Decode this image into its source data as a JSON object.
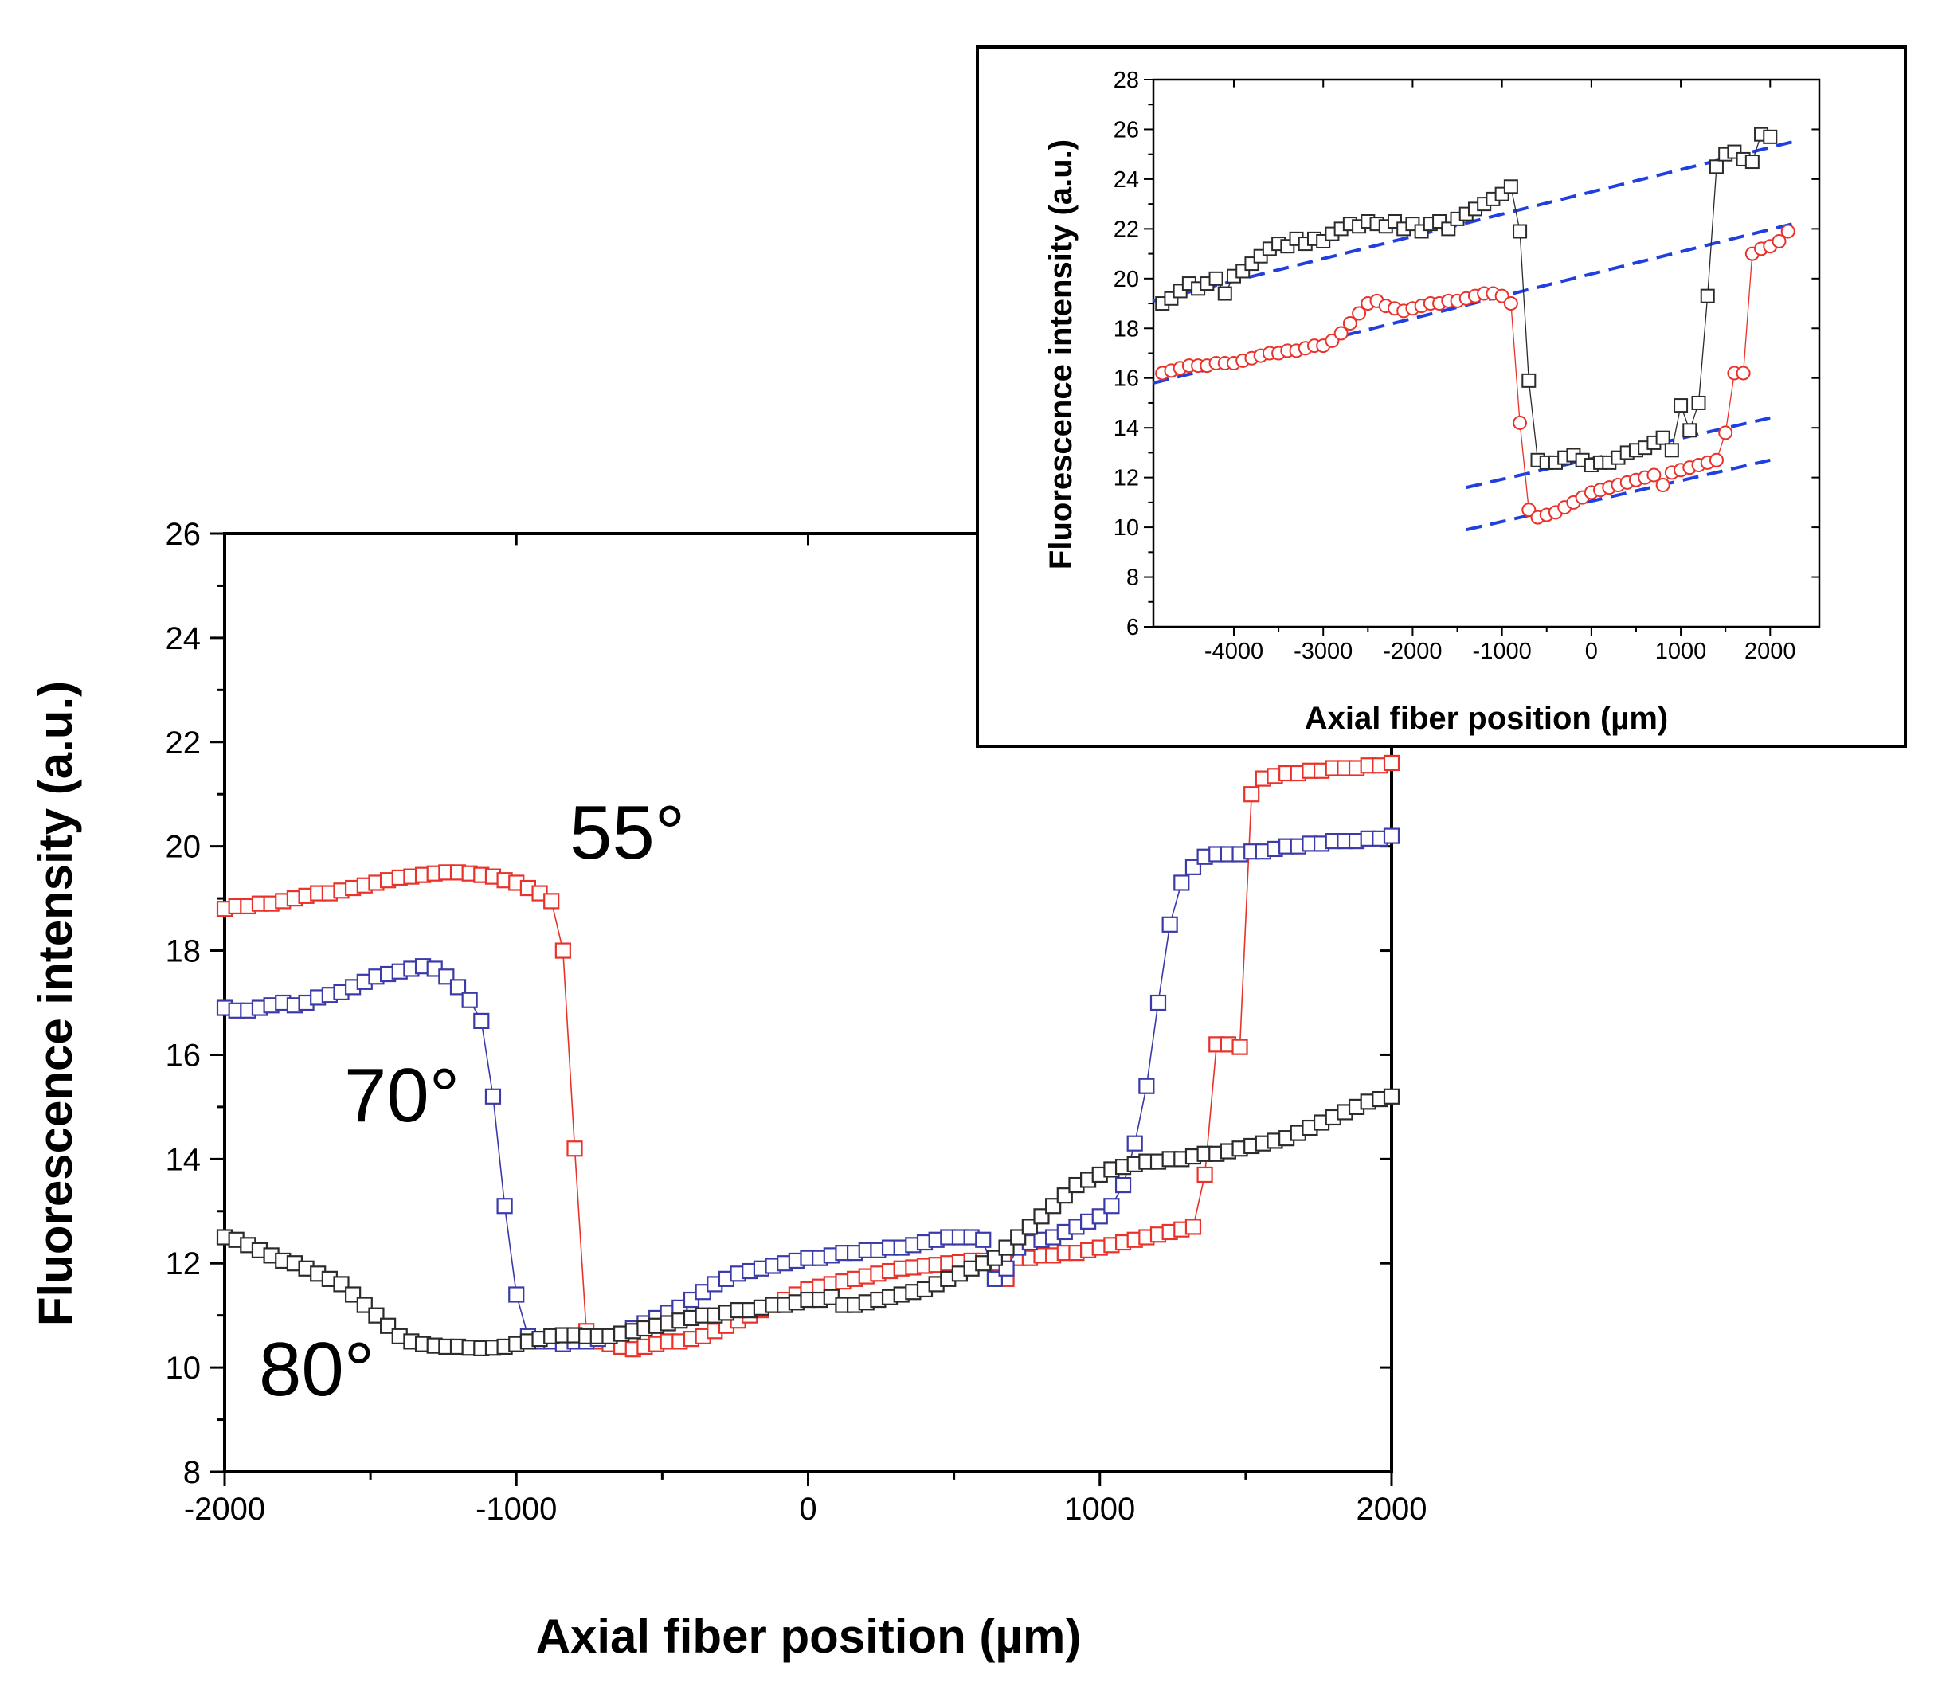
{
  "chart_data": [
    {
      "type": "line",
      "title": "",
      "xlabel": "Axial fiber position (µm)",
      "ylabel": "Fluorescence intensity (a.u.)",
      "xlim": [
        -2000,
        2000
      ],
      "ylim": [
        8,
        26
      ],
      "x_ticks": [
        -2000,
        -1000,
        0,
        1000,
        2000
      ],
      "y_ticks": [
        8,
        10,
        12,
        14,
        16,
        18,
        20,
        22,
        24,
        26
      ],
      "x_tick_labels": [
        "-2000",
        "-1000",
        "0",
        "1000",
        "2000"
      ],
      "y_tick_labels": [
        "8",
        "10",
        "12",
        "14",
        "16",
        "18",
        "20",
        "22",
        "24",
        "26"
      ],
      "marker": "square",
      "annotations": [
        {
          "text": "55°",
          "x": -820,
          "y": 20.1
        },
        {
          "text": "70°",
          "x": -1400,
          "y": 15.7
        },
        {
          "text": "80°",
          "x": -1800,
          "y": 9.9
        }
      ],
      "series": [
        {
          "name": "55°",
          "color": "#e8322a",
          "x": [
            -2000,
            -1960,
            -1920,
            -1880,
            -1840,
            -1800,
            -1760,
            -1720,
            -1680,
            -1640,
            -1600,
            -1560,
            -1520,
            -1480,
            -1440,
            -1400,
            -1360,
            -1320,
            -1280,
            -1240,
            -1200,
            -1160,
            -1120,
            -1080,
            -1040,
            -1000,
            -960,
            -920,
            -880,
            -840,
            -800,
            -760,
            -720,
            -680,
            -640,
            -600,
            -560,
            -520,
            -480,
            -440,
            -400,
            -360,
            -320,
            -280,
            -240,
            -200,
            -160,
            -120,
            -80,
            -40,
            0,
            40,
            80,
            120,
            160,
            200,
            240,
            280,
            320,
            360,
            400,
            440,
            480,
            520,
            560,
            600,
            640,
            680,
            720,
            760,
            800,
            840,
            880,
            920,
            960,
            1000,
            1040,
            1080,
            1120,
            1160,
            1200,
            1240,
            1280,
            1320,
            1360,
            1400,
            1440,
            1480,
            1520,
            1560,
            1600,
            1640,
            1680,
            1720,
            1760,
            1800,
            1840,
            1880,
            1920,
            1960,
            2000
          ],
          "y": [
            18.8,
            18.85,
            18.85,
            18.9,
            18.9,
            18.95,
            19.0,
            19.05,
            19.1,
            19.1,
            19.15,
            19.2,
            19.25,
            19.3,
            19.35,
            19.4,
            19.42,
            19.45,
            19.48,
            19.5,
            19.5,
            19.48,
            19.45,
            19.42,
            19.35,
            19.3,
            19.2,
            19.1,
            18.95,
            18.0,
            14.2,
            10.7,
            10.5,
            10.45,
            10.4,
            10.35,
            10.4,
            10.45,
            10.5,
            10.5,
            10.55,
            10.6,
            10.7,
            10.8,
            10.9,
            11.0,
            11.1,
            11.2,
            11.3,
            11.4,
            11.5,
            11.55,
            11.6,
            11.65,
            11.7,
            11.75,
            11.8,
            11.85,
            11.9,
            11.92,
            11.95,
            11.97,
            12.0,
            12.02,
            12.05,
            12.05,
            12.0,
            11.7,
            12.1,
            12.1,
            12.15,
            12.15,
            12.2,
            12.2,
            12.25,
            12.3,
            12.35,
            12.4,
            12.45,
            12.5,
            12.55,
            12.6,
            12.65,
            12.7,
            13.7,
            16.2,
            16.2,
            16.15,
            21.0,
            21.3,
            21.35,
            21.4,
            21.4,
            21.45,
            21.45,
            21.5,
            21.5,
            21.5,
            21.55,
            21.55,
            21.6
          ]
        },
        {
          "name": "70°",
          "color": "#3a3aa8",
          "x": [
            -2000,
            -1960,
            -1920,
            -1880,
            -1840,
            -1800,
            -1760,
            -1720,
            -1680,
            -1640,
            -1600,
            -1560,
            -1520,
            -1480,
            -1440,
            -1400,
            -1360,
            -1320,
            -1280,
            -1240,
            -1200,
            -1160,
            -1120,
            -1080,
            -1040,
            -1000,
            -960,
            -920,
            -880,
            -840,
            -800,
            -760,
            -720,
            -680,
            -640,
            -600,
            -560,
            -520,
            -480,
            -440,
            -400,
            -360,
            -320,
            -280,
            -240,
            -200,
            -160,
            -120,
            -80,
            -40,
            0,
            40,
            80,
            120,
            160,
            200,
            240,
            280,
            320,
            360,
            400,
            440,
            480,
            520,
            560,
            600,
            640,
            680,
            720,
            760,
            800,
            840,
            880,
            920,
            960,
            1000,
            1040,
            1080,
            1120,
            1160,
            1200,
            1240,
            1280,
            1320,
            1360,
            1400,
            1440,
            1480,
            1520,
            1560,
            1600,
            1640,
            1680,
            1720,
            1760,
            1800,
            1840,
            1880,
            1920,
            1960,
            2000
          ],
          "y": [
            16.9,
            16.85,
            16.85,
            16.9,
            16.95,
            17.0,
            16.95,
            17.0,
            17.1,
            17.15,
            17.2,
            17.3,
            17.4,
            17.5,
            17.55,
            17.6,
            17.65,
            17.7,
            17.65,
            17.5,
            17.3,
            17.05,
            16.65,
            15.2,
            13.1,
            11.4,
            10.6,
            10.5,
            10.5,
            10.45,
            10.5,
            10.5,
            10.55,
            10.6,
            10.65,
            10.75,
            10.85,
            10.95,
            11.05,
            11.15,
            11.3,
            11.45,
            11.6,
            11.7,
            11.8,
            11.85,
            11.9,
            11.95,
            12.0,
            12.05,
            12.1,
            12.1,
            12.15,
            12.2,
            12.2,
            12.25,
            12.25,
            12.3,
            12.3,
            12.35,
            12.4,
            12.45,
            12.5,
            12.5,
            12.5,
            12.45,
            11.7,
            11.9,
            12.3,
            12.4,
            12.45,
            12.5,
            12.6,
            12.7,
            12.8,
            12.9,
            13.1,
            13.5,
            14.3,
            15.4,
            17.0,
            18.5,
            19.3,
            19.6,
            19.8,
            19.85,
            19.85,
            19.85,
            19.9,
            19.9,
            19.95,
            20.0,
            20.0,
            20.05,
            20.05,
            20.1,
            20.1,
            20.1,
            20.15,
            20.15,
            20.2
          ]
        },
        {
          "name": "80°",
          "color": "#2b2b2b",
          "x": [
            -2000,
            -1960,
            -1920,
            -1880,
            -1840,
            -1800,
            -1760,
            -1720,
            -1680,
            -1640,
            -1600,
            -1560,
            -1520,
            -1480,
            -1440,
            -1400,
            -1360,
            -1320,
            -1280,
            -1240,
            -1200,
            -1160,
            -1120,
            -1080,
            -1040,
            -1000,
            -960,
            -920,
            -880,
            -840,
            -800,
            -760,
            -720,
            -680,
            -640,
            -600,
            -560,
            -520,
            -480,
            -440,
            -400,
            -360,
            -320,
            -280,
            -240,
            -200,
            -160,
            -120,
            -80,
            -40,
            0,
            40,
            80,
            120,
            160,
            200,
            240,
            280,
            320,
            360,
            400,
            440,
            480,
            520,
            560,
            600,
            640,
            680,
            720,
            760,
            800,
            840,
            880,
            920,
            960,
            1000,
            1040,
            1080,
            1120,
            1160,
            1200,
            1240,
            1280,
            1320,
            1360,
            1400,
            1440,
            1480,
            1520,
            1560,
            1600,
            1640,
            1680,
            1720,
            1760,
            1800,
            1840,
            1880,
            1920,
            1960,
            2000
          ],
          "y": [
            12.5,
            12.45,
            12.35,
            12.25,
            12.15,
            12.05,
            12.0,
            11.9,
            11.8,
            11.7,
            11.6,
            11.4,
            11.2,
            11.0,
            10.8,
            10.6,
            10.5,
            10.45,
            10.42,
            10.4,
            10.4,
            10.38,
            10.37,
            10.38,
            10.4,
            10.45,
            10.5,
            10.55,
            10.6,
            10.62,
            10.62,
            10.6,
            10.6,
            10.6,
            10.65,
            10.7,
            10.75,
            10.8,
            10.85,
            10.9,
            10.95,
            11.0,
            11.0,
            11.05,
            11.1,
            11.1,
            11.15,
            11.2,
            11.2,
            11.25,
            11.3,
            11.3,
            11.35,
            11.2,
            11.2,
            11.25,
            11.3,
            11.35,
            11.4,
            11.45,
            11.5,
            11.6,
            11.7,
            11.8,
            11.9,
            12.0,
            12.1,
            12.3,
            12.5,
            12.7,
            12.9,
            13.1,
            13.3,
            13.5,
            13.6,
            13.7,
            13.8,
            13.85,
            13.9,
            13.95,
            13.95,
            14.0,
            14.0,
            14.05,
            14.1,
            14.1,
            14.15,
            14.2,
            14.25,
            14.3,
            14.35,
            14.4,
            14.5,
            14.6,
            14.7,
            14.8,
            14.9,
            15.0,
            15.1,
            15.15,
            15.2
          ]
        }
      ]
    },
    {
      "type": "line",
      "title": "",
      "xlabel": "Axial fiber position (µm)",
      "ylabel": "Fluorescence intensity (a.u.)",
      "xlim": [
        -4900,
        2550
      ],
      "ylim": [
        6,
        28
      ],
      "x_ticks": [
        -4000,
        -3000,
        -2000,
        -1000,
        0,
        1000,
        2000
      ],
      "y_ticks": [
        6,
        8,
        10,
        12,
        14,
        16,
        18,
        20,
        22,
        24,
        26,
        28
      ],
      "x_tick_labels": [
        "-4000",
        "-3000",
        "-2000",
        "-1000",
        "0",
        "1000",
        "2000"
      ],
      "y_tick_labels": [
        "6",
        "8",
        "10",
        "12",
        "14",
        "16",
        "18",
        "20",
        "22",
        "24",
        "26",
        "28"
      ],
      "series": [
        {
          "name": "black squares",
          "color": "#2b2b2b",
          "marker": "square",
          "x": [
            -4800,
            -4700,
            -4600,
            -4500,
            -4400,
            -4300,
            -4200,
            -4100,
            -4000,
            -3900,
            -3800,
            -3700,
            -3600,
            -3500,
            -3400,
            -3300,
            -3200,
            -3100,
            -3000,
            -2900,
            -2800,
            -2700,
            -2600,
            -2500,
            -2400,
            -2300,
            -2200,
            -2100,
            -2000,
            -1900,
            -1800,
            -1700,
            -1600,
            -1500,
            -1400,
            -1300,
            -1200,
            -1100,
            -1000,
            -900,
            -800,
            -700,
            -600,
            -500,
            -400,
            -300,
            -200,
            -100,
            0,
            100,
            200,
            300,
            400,
            500,
            600,
            700,
            800,
            900,
            1000,
            1100,
            1200,
            1300,
            1400,
            1500,
            1600,
            1700,
            1800,
            1900,
            2000
          ],
          "y": [
            19.0,
            19.2,
            19.5,
            19.8,
            19.6,
            19.8,
            20.0,
            19.4,
            20.1,
            20.3,
            20.6,
            20.9,
            21.2,
            21.4,
            21.3,
            21.6,
            21.4,
            21.6,
            21.5,
            21.8,
            22.0,
            22.2,
            22.1,
            22.3,
            22.2,
            22.1,
            22.3,
            22.0,
            22.2,
            21.9,
            22.2,
            22.3,
            22.0,
            22.4,
            22.6,
            22.8,
            23.0,
            23.2,
            23.4,
            23.7,
            21.9,
            15.9,
            12.7,
            12.6,
            12.6,
            12.8,
            12.9,
            12.7,
            12.5,
            12.6,
            12.6,
            12.8,
            13.0,
            13.1,
            13.2,
            13.4,
            13.6,
            13.1,
            14.9,
            13.9,
            15.0,
            19.3,
            24.5,
            25.0,
            25.1,
            24.8,
            24.7,
            25.8,
            25.7
          ]
        },
        {
          "name": "red circles",
          "color": "#e8322a",
          "marker": "circle",
          "x": [
            -4800,
            -4700,
            -4600,
            -4500,
            -4400,
            -4300,
            -4200,
            -4100,
            -4000,
            -3900,
            -3800,
            -3700,
            -3600,
            -3500,
            -3400,
            -3300,
            -3200,
            -3100,
            -3000,
            -2900,
            -2800,
            -2700,
            -2600,
            -2500,
            -2400,
            -2300,
            -2200,
            -2100,
            -2000,
            -1900,
            -1800,
            -1700,
            -1600,
            -1500,
            -1400,
            -1300,
            -1200,
            -1100,
            -1000,
            -900,
            -800,
            -700,
            -600,
            -500,
            -400,
            -300,
            -200,
            -100,
            0,
            100,
            200,
            300,
            400,
            500,
            600,
            700,
            800,
            900,
            1000,
            1100,
            1200,
            1300,
            1400,
            1500,
            1600,
            1700,
            1800,
            1900,
            2000,
            2100,
            2200
          ],
          "y": [
            16.2,
            16.3,
            16.4,
            16.5,
            16.5,
            16.5,
            16.6,
            16.6,
            16.6,
            16.7,
            16.8,
            16.9,
            17.0,
            17.0,
            17.1,
            17.1,
            17.2,
            17.3,
            17.3,
            17.5,
            17.8,
            18.2,
            18.6,
            19.0,
            19.1,
            18.9,
            18.8,
            18.7,
            18.8,
            18.9,
            19.0,
            19.0,
            19.1,
            19.1,
            19.2,
            19.3,
            19.4,
            19.4,
            19.3,
            19.0,
            14.2,
            10.7,
            10.4,
            10.5,
            10.6,
            10.8,
            11.0,
            11.2,
            11.4,
            11.5,
            11.6,
            11.7,
            11.8,
            11.9,
            12.0,
            12.1,
            11.7,
            12.2,
            12.3,
            12.4,
            12.5,
            12.6,
            12.7,
            13.8,
            16.2,
            16.2,
            21.0,
            21.2,
            21.3,
            21.5,
            21.9
          ]
        }
      ],
      "reference_lines": [
        {
          "color": "#1f3fe0",
          "style": "dashed",
          "x": [
            -4900,
            2250
          ],
          "y": [
            19.1,
            25.5
          ]
        },
        {
          "color": "#1f3fe0",
          "style": "dashed",
          "x": [
            -4900,
            2250
          ],
          "y": [
            15.8,
            22.2
          ]
        },
        {
          "color": "#1f3fe0",
          "style": "dashed",
          "x": [
            -1400,
            2000
          ],
          "y": [
            11.6,
            14.4
          ]
        },
        {
          "color": "#1f3fe0",
          "style": "dashed",
          "x": [
            -1400,
            2000
          ],
          "y": [
            9.9,
            12.7
          ]
        }
      ]
    }
  ]
}
